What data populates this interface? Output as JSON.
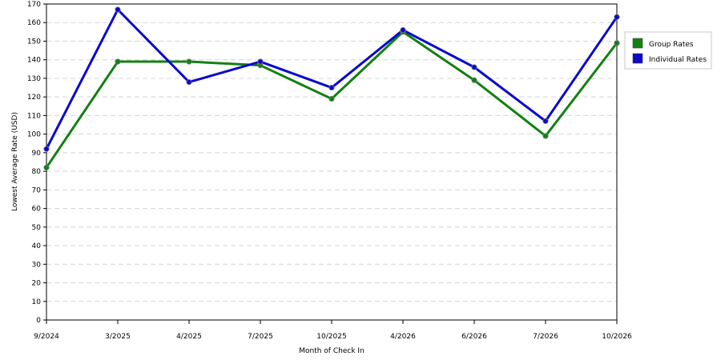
{
  "chart_data": {
    "type": "line",
    "title": "",
    "xlabel": "Month of Check In",
    "ylabel": "Lowest Average Rate (USD)",
    "categories": [
      "9/2024",
      "3/2025",
      "4/2025",
      "7/2025",
      "10/2025",
      "4/2026",
      "6/2026",
      "7/2026",
      "10/2026"
    ],
    "ylim": [
      0,
      170
    ],
    "ytick_step": 10,
    "grid": "horizontal dashed",
    "legend_position": "right",
    "series": [
      {
        "name": "Group Rates",
        "color": "#138013",
        "values": [
          82,
          139,
          139,
          137,
          119,
          155,
          129,
          99,
          149
        ]
      },
      {
        "name": "Individual Rates",
        "color": "#0a0acc",
        "values": [
          92,
          167,
          128,
          139,
          125,
          156,
          136,
          107,
          163
        ]
      }
    ]
  }
}
